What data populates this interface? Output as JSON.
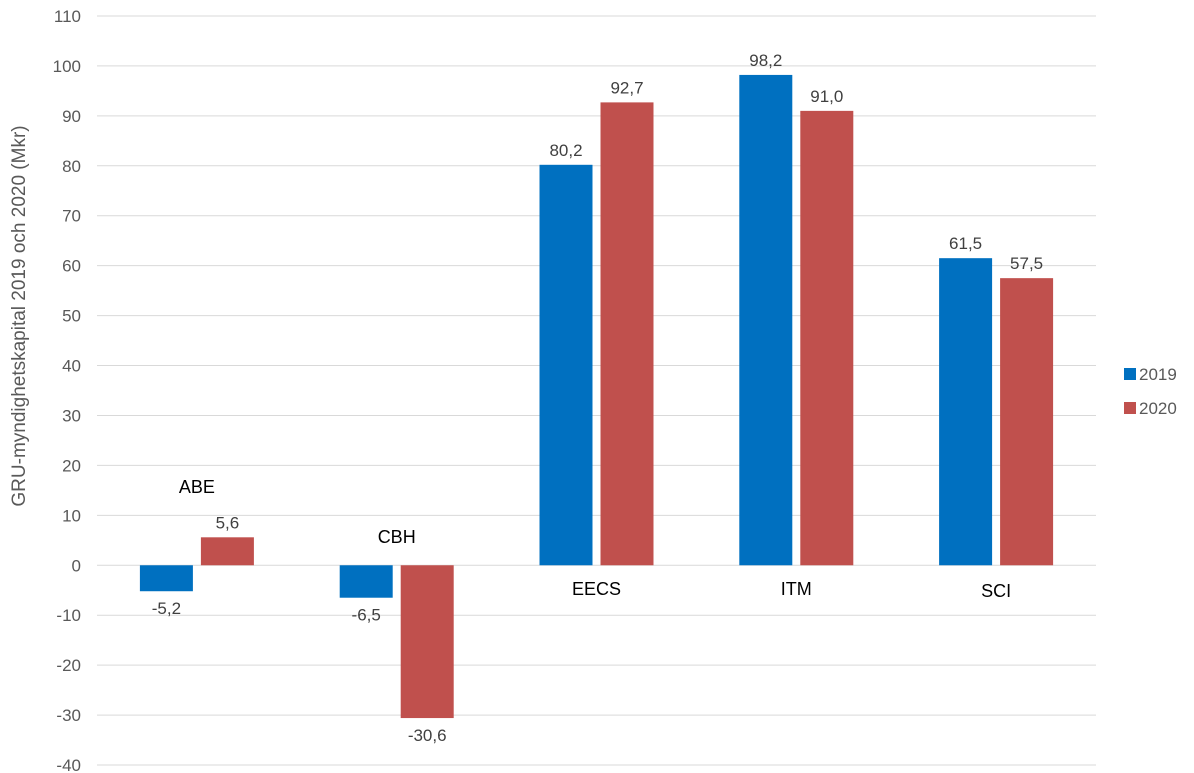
{
  "chart_data": {
    "type": "bar",
    "title": "",
    "xlabel": "",
    "ylabel": "GRU-myndighetskapital 2019 och 2020 (Mkr)",
    "ylim": [
      -40,
      110
    ],
    "ytick_step": 10,
    "grid": true,
    "legend_position": "right",
    "categories": [
      "ABE",
      "CBH",
      "EECS",
      "ITM",
      "SCI"
    ],
    "series": [
      {
        "name": "2019",
        "color": "#0070C0",
        "values": [
          -5.2,
          -6.5,
          80.2,
          98.2,
          61.5
        ],
        "labels": [
          "-5,2",
          "-6,5",
          "80,2",
          "98,2",
          "61,5"
        ]
      },
      {
        "name": "2020",
        "color": "#C0504D",
        "values": [
          5.6,
          -30.6,
          92.7,
          91.0,
          57.5
        ],
        "labels": [
          "5,6",
          "-30,6",
          "92,7",
          "91,0",
          "57,5"
        ]
      }
    ]
  }
}
